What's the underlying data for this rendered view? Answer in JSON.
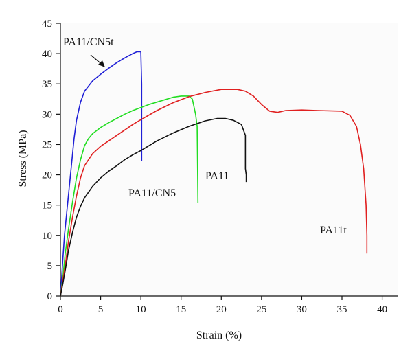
{
  "chart_data": {
    "type": "line",
    "xlabel": "Strain (%)",
    "ylabel": "Stress (MPa)",
    "xlim": [
      0,
      42
    ],
    "ylim": [
      0,
      45
    ],
    "xticks": [
      0,
      5,
      10,
      15,
      20,
      25,
      30,
      35,
      40
    ],
    "yticks": [
      0,
      5,
      10,
      15,
      20,
      25,
      30,
      35,
      40,
      45
    ],
    "grid": false,
    "series": [
      {
        "name": "PA11/CN5t",
        "color": "#1f1fd6",
        "points": [
          [
            0,
            0
          ],
          [
            0.1,
            2
          ],
          [
            0.3,
            6
          ],
          [
            0.5,
            10
          ],
          [
            0.8,
            14
          ],
          [
            1.1,
            18
          ],
          [
            1.4,
            22
          ],
          [
            1.7,
            26
          ],
          [
            2.0,
            29
          ],
          [
            2.5,
            32
          ],
          [
            3.0,
            33.8
          ],
          [
            4,
            35.5
          ],
          [
            5,
            36.6
          ],
          [
            6,
            37.6
          ],
          [
            7,
            38.5
          ],
          [
            8,
            39.3
          ],
          [
            9,
            40
          ],
          [
            9.5,
            40.3
          ],
          [
            10,
            40.3
          ],
          [
            10.1,
            35
          ],
          [
            10.1,
            22.3
          ]
        ]
      },
      {
        "name": "PA11/CN5",
        "color": "#22dd22",
        "points": [
          [
            0,
            0
          ],
          [
            0.3,
            3
          ],
          [
            0.6,
            7
          ],
          [
            1,
            11
          ],
          [
            1.5,
            15.5
          ],
          [
            2,
            19.5
          ],
          [
            2.5,
            22.5
          ],
          [
            3,
            24.8
          ],
          [
            3.5,
            26
          ],
          [
            4,
            26.8
          ],
          [
            5,
            27.8
          ],
          [
            6,
            28.6
          ],
          [
            7,
            29.3
          ],
          [
            8,
            30
          ],
          [
            9,
            30.6
          ],
          [
            10,
            31.1
          ],
          [
            11,
            31.6
          ],
          [
            12,
            32
          ],
          [
            13,
            32.4
          ],
          [
            14,
            32.8
          ],
          [
            15,
            33
          ],
          [
            16,
            33
          ],
          [
            16.4,
            32.5
          ],
          [
            16.8,
            30
          ],
          [
            17,
            28
          ],
          [
            17.1,
            15.3
          ]
        ]
      },
      {
        "name": "PA11t",
        "color": "#e02020",
        "points": [
          [
            0,
            0
          ],
          [
            0.3,
            2.5
          ],
          [
            0.7,
            6
          ],
          [
            1,
            9
          ],
          [
            1.5,
            13
          ],
          [
            2,
            16.5
          ],
          [
            2.5,
            19.5
          ],
          [
            3,
            21.5
          ],
          [
            4,
            23.5
          ],
          [
            5,
            24.7
          ],
          [
            6,
            25.6
          ],
          [
            7,
            26.5
          ],
          [
            8,
            27.4
          ],
          [
            9,
            28.3
          ],
          [
            10,
            29.1
          ],
          [
            12,
            30.6
          ],
          [
            14,
            31.9
          ],
          [
            16,
            32.9
          ],
          [
            18,
            33.6
          ],
          [
            20,
            34.1
          ],
          [
            22,
            34.1
          ],
          [
            23,
            33.8
          ],
          [
            24,
            33
          ],
          [
            25,
            31.6
          ],
          [
            26,
            30.5
          ],
          [
            27,
            30.3
          ],
          [
            28,
            30.6
          ],
          [
            30,
            30.7
          ],
          [
            32,
            30.6
          ],
          [
            35,
            30.5
          ],
          [
            36,
            29.8
          ],
          [
            36.8,
            28
          ],
          [
            37.3,
            25
          ],
          [
            37.7,
            21
          ],
          [
            38,
            15
          ],
          [
            38.1,
            10
          ],
          [
            38.1,
            7
          ]
        ]
      },
      {
        "name": "PA11",
        "color": "#111111",
        "points": [
          [
            0,
            0
          ],
          [
            0.3,
            2
          ],
          [
            0.7,
            5
          ],
          [
            1,
            7.5
          ],
          [
            1.5,
            10.5
          ],
          [
            2,
            13
          ],
          [
            2.5,
            14.8
          ],
          [
            3,
            16.2
          ],
          [
            4,
            18.1
          ],
          [
            5,
            19.5
          ],
          [
            6,
            20.6
          ],
          [
            7,
            21.5
          ],
          [
            8,
            22.5
          ],
          [
            9,
            23.3
          ],
          [
            10,
            24
          ],
          [
            12,
            25.6
          ],
          [
            14,
            26.9
          ],
          [
            16,
            28
          ],
          [
            18,
            28.9
          ],
          [
            19.5,
            29.3
          ],
          [
            20.5,
            29.3
          ],
          [
            21.5,
            29
          ],
          [
            22.5,
            28.3
          ],
          [
            23,
            26.5
          ],
          [
            23,
            21
          ],
          [
            23.1,
            20
          ],
          [
            23.1,
            18.8
          ]
        ]
      }
    ],
    "annotations": [
      {
        "text": "PA11/CN5t",
        "series": "PA11/CN5t",
        "arrow": true
      },
      {
        "text": "PA11/CN5",
        "series": "PA11/CN5"
      },
      {
        "text": "PA11",
        "series": "PA11"
      },
      {
        "text": "PA11t",
        "series": "PA11t"
      }
    ]
  }
}
